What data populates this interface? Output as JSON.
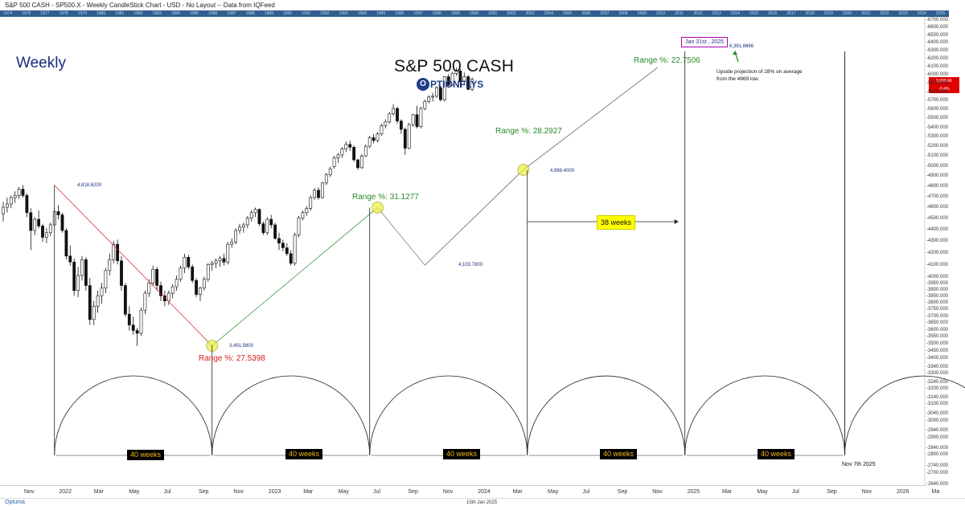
{
  "header": {
    "title": "S&P 500 CASH - SP500.X - Weekly CandleStick Chart - USD - No Layout -- Data from IQFeed"
  },
  "year_strip": [
    "1974",
    "1976",
    "1977",
    "1978",
    "1979",
    "1980",
    "1981",
    "1982",
    "1983",
    "1984",
    "1985",
    "1986",
    "1987",
    "1988",
    "1989",
    "1990",
    "1991",
    "1992",
    "1993",
    "1994",
    "1995",
    "1996",
    "1997",
    "1998",
    "1999",
    "2000",
    "2001",
    "2002",
    "2003",
    "2004",
    "2005",
    "2006",
    "2007",
    "2008",
    "2009",
    "2010",
    "2011",
    "2012",
    "2013",
    "2014",
    "2015",
    "2016",
    "2017",
    "2018",
    "2019",
    "2020",
    "2021",
    "2022",
    "2023",
    "2024",
    "2025"
  ],
  "overlay": {
    "timeframe": "Weekly",
    "chart_title": "S&P 500 CASH",
    "logo_letter": "O",
    "logo_text": "PTIONFLYS",
    "range_labels": [
      {
        "id": "r1",
        "text": "Range %: 27.5398",
        "color": "#d21e1e"
      },
      {
        "id": "r2",
        "text": "Range %: 31.1277",
        "color": "#2a8a2a"
      },
      {
        "id": "r3",
        "text": "Range %: 28.2927",
        "color": "#2a8a2a"
      },
      {
        "id": "r4",
        "text": "Range %: 22.7506",
        "color": "#2a8a2a"
      }
    ],
    "price_labels": [
      "4,818.6200",
      "3,491.5800",
      "4,103.7800",
      "4,969.4000",
      "6,361.8666"
    ],
    "cycle_label": "40 weeks",
    "span_label": "38 weeks",
    "date_box": "Jan 31st , 2025",
    "projection_note": "Upside projection of 28% on average from the 4969 low.",
    "end_date": "Nov 7th 2025",
    "last_price_badge": [
      "5,996.66",
      "-0.4%"
    ]
  },
  "footer": {
    "brand": "Optuma",
    "date": "15th Jan 2025"
  },
  "chart_data": {
    "type": "candlestick",
    "title": "S&P 500 CASH",
    "x_axis_labels": [
      "Nov",
      "2022",
      "Mar",
      "May",
      "Jul",
      "Sep",
      "Nov",
      "2023",
      "Mar",
      "May",
      "Jul",
      "Sep",
      "Nov",
      "2024",
      "Mar",
      "May",
      "Jul",
      "Sep",
      "Nov",
      "2025",
      "Mar",
      "May",
      "Jul",
      "Sep",
      "Nov",
      "2026",
      "Ma"
    ],
    "y_axis_labels": [
      6700,
      6600,
      6500,
      6400,
      6300,
      6200,
      6100,
      6000,
      5900,
      5800,
      5700,
      5600,
      5500,
      5400,
      5300,
      5200,
      5100,
      5000,
      4900,
      4800,
      4700,
      4600,
      4500,
      4400,
      4300,
      4200,
      4100,
      4000,
      3950,
      3900,
      3850,
      3800,
      3750,
      3700,
      3650,
      3600,
      3550,
      3500,
      3450,
      3400,
      3340,
      3300,
      3240,
      3200,
      3140,
      3100,
      3040,
      3000,
      2940,
      2900,
      2840,
      2800,
      2740,
      2700,
      2640
    ],
    "ylim": [
      2640,
      6700
    ],
    "y_scale": "log",
    "y_labels_format": "0.000",
    "pivots": [
      {
        "date": "2022-01-03",
        "price": 4818.62
      },
      {
        "date": "2022-10-10",
        "price": 3491.58
      },
      {
        "date": "2023-07-31",
        "price": 4607.0
      },
      {
        "date": "2023-10-23",
        "price": 4103.78
      },
      {
        "date": "2024-04-15",
        "price": 4969.4
      },
      {
        "date": "2024-12-09",
        "price": 6099.0
      }
    ],
    "projection": {
      "date": "2025-01-31",
      "price": 6361.8666
    },
    "cycle_lows": [
      "2022-01-03",
      "2022-10-10",
      "2023-07-17",
      "2024-04-22",
      "2025-01-27",
      "2025-11-07"
    ],
    "candles": [
      [
        4550,
        4660,
        4480,
        4610
      ],
      [
        4610,
        4700,
        4560,
        4640
      ],
      [
        4640,
        4720,
        4600,
        4700
      ],
      [
        4700,
        4760,
        4650,
        4720
      ],
      [
        4720,
        4800,
        4690,
        4780
      ],
      [
        4780,
        4818,
        4700,
        4720
      ],
      [
        4720,
        4740,
        4520,
        4560
      ],
      [
        4560,
        4600,
        4230,
        4400
      ],
      [
        4400,
        4520,
        4360,
        4500
      ],
      [
        4500,
        4580,
        4420,
        4440
      ],
      [
        4440,
        4460,
        4300,
        4340
      ],
      [
        4340,
        4420,
        4290,
        4380
      ],
      [
        4380,
        4470,
        4350,
        4450
      ],
      [
        4450,
        4600,
        4430,
        4570
      ],
      [
        4570,
        4630,
        4500,
        4540
      ],
      [
        4540,
        4560,
        4380,
        4400
      ],
      [
        4400,
        4420,
        4150,
        4180
      ],
      [
        4180,
        4270,
        4100,
        4130
      ],
      [
        4130,
        4160,
        3860,
        3900
      ],
      [
        3900,
        4090,
        3850,
        4020
      ],
      [
        4020,
        4180,
        3980,
        4150
      ],
      [
        4150,
        4170,
        3900,
        3940
      ],
      [
        3940,
        4000,
        3640,
        3680
      ],
      [
        3680,
        3820,
        3640,
        3780
      ],
      [
        3780,
        3900,
        3730,
        3860
      ],
      [
        3860,
        3960,
        3800,
        3920
      ],
      [
        3920,
        4080,
        3880,
        4060
      ],
      [
        4060,
        4200,
        4020,
        4150
      ],
      [
        4150,
        4310,
        4120,
        4280
      ],
      [
        4280,
        4320,
        4110,
        4140
      ],
      [
        4140,
        4180,
        3900,
        3940
      ],
      [
        3940,
        3960,
        3700,
        3720
      ],
      [
        3720,
        3780,
        3600,
        3640
      ],
      [
        3640,
        3700,
        3570,
        3600
      ],
      [
        3600,
        3620,
        3491,
        3580
      ],
      [
        3580,
        3770,
        3560,
        3750
      ],
      [
        3750,
        3900,
        3720,
        3880
      ],
      [
        3880,
        3990,
        3850,
        3960
      ],
      [
        3960,
        4100,
        3940,
        4070
      ],
      [
        4070,
        4090,
        3900,
        3940
      ],
      [
        3940,
        3970,
        3820,
        3860
      ],
      [
        3860,
        3900,
        3780,
        3820
      ],
      [
        3820,
        3900,
        3790,
        3880
      ],
      [
        3880,
        3950,
        3840,
        3930
      ],
      [
        3930,
        4020,
        3900,
        3990
      ],
      [
        3990,
        4100,
        3970,
        4080
      ],
      [
        4080,
        4200,
        4040,
        4170
      ],
      [
        4170,
        4190,
        4070,
        4090
      ],
      [
        4090,
        4110,
        3960,
        3980
      ],
      [
        3980,
        4000,
        3850,
        3870
      ],
      [
        3870,
        3930,
        3820,
        3920
      ],
      [
        3920,
        4010,
        3900,
        3990
      ],
      [
        3990,
        4120,
        3970,
        4110
      ],
      [
        4110,
        4140,
        4060,
        4120
      ],
      [
        4120,
        4160,
        4080,
        4140
      ],
      [
        4140,
        4180,
        4090,
        4160
      ],
      [
        4160,
        4200,
        4100,
        4130
      ],
      [
        4130,
        4300,
        4110,
        4280
      ],
      [
        4280,
        4330,
        4250,
        4300
      ],
      [
        4300,
        4420,
        4280,
        4400
      ],
      [
        4400,
        4460,
        4370,
        4430
      ],
      [
        4430,
        4470,
        4380,
        4450
      ],
      [
        4450,
        4530,
        4420,
        4510
      ],
      [
        4510,
        4580,
        4480,
        4560
      ],
      [
        4560,
        4607,
        4520,
        4590
      ],
      [
        4590,
        4600,
        4440,
        4460
      ],
      [
        4460,
        4480,
        4360,
        4380
      ],
      [
        4380,
        4520,
        4360,
        4500
      ],
      [
        4500,
        4540,
        4420,
        4450
      ],
      [
        4450,
        4470,
        4320,
        4330
      ],
      [
        4330,
        4380,
        4230,
        4290
      ],
      [
        4290,
        4320,
        4220,
        4250
      ],
      [
        4250,
        4290,
        4180,
        4200
      ],
      [
        4200,
        4230,
        4103,
        4120
      ],
      [
        4120,
        4380,
        4100,
        4360
      ],
      [
        4360,
        4530,
        4340,
        4510
      ],
      [
        4510,
        4580,
        4490,
        4560
      ],
      [
        4560,
        4620,
        4530,
        4600
      ],
      [
        4600,
        4720,
        4580,
        4700
      ],
      [
        4700,
        4790,
        4680,
        4770
      ],
      [
        4770,
        4800,
        4680,
        4700
      ],
      [
        4700,
        4850,
        4690,
        4840
      ],
      [
        4840,
        4940,
        4820,
        4920
      ],
      [
        4920,
        5000,
        4900,
        4980
      ],
      [
        5000,
        5110,
        4980,
        5090
      ],
      [
        5090,
        5140,
        5040,
        5120
      ],
      [
        5120,
        5200,
        5090,
        5180
      ],
      [
        5180,
        5260,
        5150,
        5230
      ],
      [
        5230,
        5270,
        5160,
        5200
      ],
      [
        5200,
        5220,
        5050,
        5070
      ],
      [
        5070,
        5080,
        4969,
        4990
      ],
      [
        4990,
        5130,
        4980,
        5110
      ],
      [
        5110,
        5230,
        5100,
        5210
      ],
      [
        5210,
        5320,
        5190,
        5300
      ],
      [
        5300,
        5340,
        5240,
        5270
      ],
      [
        5270,
        5360,
        5250,
        5340
      ],
      [
        5340,
        5450,
        5320,
        5430
      ],
      [
        5430,
        5500,
        5400,
        5470
      ],
      [
        5470,
        5580,
        5450,
        5560
      ],
      [
        5560,
        5670,
        5540,
        5620
      ],
      [
        5620,
        5640,
        5450,
        5480
      ],
      [
        5480,
        5500,
        5340,
        5390
      ],
      [
        5390,
        5410,
        5120,
        5190
      ],
      [
        5190,
        5460,
        5180,
        5440
      ],
      [
        5440,
        5560,
        5420,
        5550
      ],
      [
        5550,
        5650,
        5400,
        5420
      ],
      [
        5420,
        5640,
        5400,
        5620
      ],
      [
        5620,
        5720,
        5600,
        5700
      ],
      [
        5700,
        5770,
        5680,
        5750
      ],
      [
        5750,
        5800,
        5700,
        5760
      ],
      [
        5760,
        5880,
        5740,
        5860
      ],
      [
        5860,
        5880,
        5700,
        5720
      ],
      [
        5720,
        6000,
        5700,
        5990
      ],
      [
        5990,
        6020,
        5870,
        5890
      ],
      [
        5890,
        6050,
        5880,
        6030
      ],
      [
        6030,
        6099,
        6000,
        6060
      ],
      [
        6060,
        6080,
        5860,
        5930
      ],
      [
        5930,
        6040,
        5900,
        5990
      ],
      [
        5990,
        6010,
        5830,
        5840
      ],
      [
        5840,
        5980,
        5820,
        5960
      ]
    ]
  }
}
